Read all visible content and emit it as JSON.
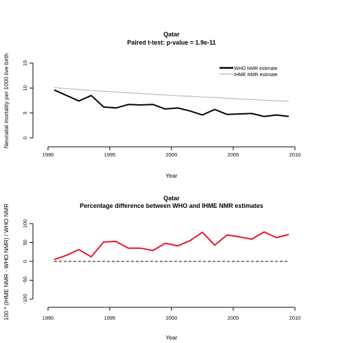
{
  "chart_data": [
    {
      "type": "line",
      "title": "Qatar",
      "subtitle": "Paired t-test: p-value =  1.9e-11",
      "xlabel": "Year",
      "ylabel": "Neonatal mortality per 1000 live birth",
      "xlim": [
        1990,
        2010
      ],
      "ylim": [
        0,
        15
      ],
      "x_ticks": [
        "1990",
        "1995",
        "2000",
        "2005",
        "2010"
      ],
      "y_ticks": [
        "0",
        "5",
        "10",
        "15"
      ],
      "x": [
        1990.5,
        1991.5,
        1992.5,
        1993.5,
        1994.5,
        1995.5,
        1996.5,
        1997.5,
        1998.5,
        1999.5,
        2000.5,
        2001.5,
        2002.5,
        2003.5,
        2004.5,
        2005.5,
        2006.5,
        2007.5,
        2008.5,
        2009.5
      ],
      "grid": false,
      "legend_position": "top-right",
      "series": [
        {
          "name": "WHO NMR estimate",
          "color": "#000000",
          "values": [
            9.6,
            8.5,
            7.4,
            8.5,
            6.2,
            6.0,
            6.7,
            6.6,
            6.7,
            5.8,
            6.0,
            5.4,
            4.6,
            5.7,
            4.7,
            4.8,
            4.9,
            4.3,
            4.6,
            4.3
          ]
        },
        {
          "name": "IHME NMR estimate",
          "color": "#bebebe",
          "values": [
            10.1,
            9.9,
            9.7,
            9.5,
            9.35,
            9.2,
            9.05,
            8.9,
            8.75,
            8.6,
            8.45,
            8.35,
            8.2,
            8.1,
            7.95,
            7.8,
            7.7,
            7.55,
            7.45,
            7.35
          ]
        }
      ]
    },
    {
      "type": "line",
      "title": "Qatar",
      "subtitle": "Percentage difference between WHO and IHME NMR estimates",
      "xlabel": "Year",
      "ylabel": "100 * (IHME NMR - WHO NMR) / WHO NMR",
      "xlim": [
        1990,
        2010
      ],
      "ylim": [
        -100,
        100
      ],
      "x_ticks": [
        "1990",
        "1995",
        "2000",
        "2005",
        "2010"
      ],
      "y_ticks": [
        "-100",
        "-50",
        "0",
        "50",
        "100"
      ],
      "x": [
        1990.5,
        1991.5,
        1992.5,
        1993.5,
        1994.5,
        1995.5,
        1996.5,
        1997.5,
        1998.5,
        1999.5,
        2000.5,
        2001.5,
        2002.5,
        2003.5,
        2004.5,
        2005.5,
        2006.5,
        2007.5,
        2008.5,
        2009.5
      ],
      "reference_line": 0,
      "grid": false,
      "series": [
        {
          "color": "#ee1122",
          "values": [
            5,
            16,
            31,
            12,
            51,
            53,
            35,
            35,
            29,
            48,
            41,
            55,
            77,
            43,
            70,
            65,
            59,
            78,
            63,
            71
          ]
        }
      ]
    }
  ]
}
